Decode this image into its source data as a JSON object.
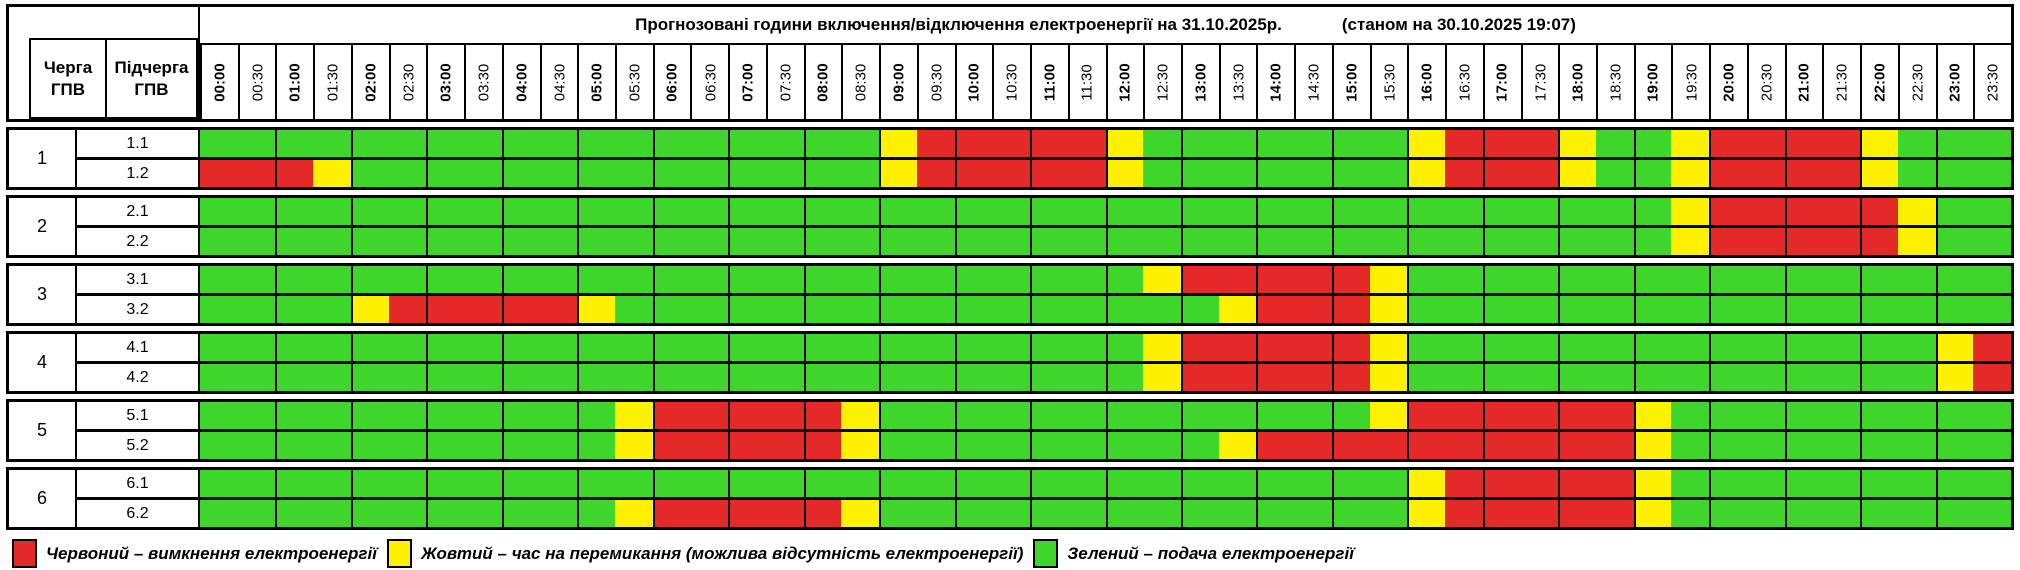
{
  "header": {
    "queue_col": [
      "Черга",
      "ГПВ"
    ],
    "subqueue_col": [
      "Підчерга",
      "ГПВ"
    ],
    "title": "Прогнозовані години включення/відключення електроенергії на 31.10.2025р.",
    "status": "(станом на 30.10.2025 19:07)"
  },
  "colors": {
    "green": "#3fd62c",
    "yellow": "#fff200",
    "red": "#e32a28"
  },
  "chart_data": {
    "type": "heatmap",
    "title": "Прогнозовані години включення/відключення електроенергії на 31.10.2025р.",
    "x": [
      "00:00",
      "00:30",
      "01:00",
      "01:30",
      "02:00",
      "02:30",
      "03:00",
      "03:30",
      "04:00",
      "04:30",
      "05:00",
      "05:30",
      "06:00",
      "06:30",
      "07:00",
      "07:30",
      "08:00",
      "08:30",
      "09:00",
      "09:30",
      "10:00",
      "10:30",
      "11:00",
      "11:30",
      "12:00",
      "12:30",
      "13:00",
      "13:30",
      "14:00",
      "14:30",
      "15:00",
      "15:30",
      "16:00",
      "16:30",
      "17:00",
      "17:30",
      "18:00",
      "18:30",
      "19:00",
      "19:30",
      "20:00",
      "20:30",
      "21:00",
      "21:30",
      "22:00",
      "22:30",
      "23:00",
      "23:30"
    ],
    "cell_states": {
      "G": "зелений – подача електроенергії",
      "Y": "жовтий – час на перемикання",
      "R": "червоний – вимкнення електроенергії"
    },
    "groups": [
      {
        "queue": "1",
        "rows": [
          {
            "label": "1.1",
            "cells": "GGGGGGGGGGGGGGGGGGYRRRRRYGGGGGGGYRRRYGGYRRRRYGGG"
          },
          {
            "label": "1.2",
            "cells": "RRRYGGGGGGGGGGGGGGYRRRRRYGGGGGGGYRRRYGGYRRRRYGGG"
          }
        ]
      },
      {
        "queue": "2",
        "rows": [
          {
            "label": "2.1",
            "cells": "GGGGGGGGGGGGGGGGGGGGGGGGGGGGGGGGGGGGGGGYRRRRRYGG"
          },
          {
            "label": "2.2",
            "cells": "GGGGGGGGGGGGGGGGGGGGGGGGGGGGGGGGGGGGGGGYRRRRRYGG"
          }
        ]
      },
      {
        "queue": "3",
        "rows": [
          {
            "label": "3.1",
            "cells": "GGGGGGGGGGGGGGGGGGGGGGGGGYRRRRRYGGGGGGGGGGGGGGGG"
          },
          {
            "label": "3.2",
            "cells": "GGGGYRRRRRYGGGGGGGGGGGGGGGGYRRRYGGGGGGGGGGGGGGGG"
          }
        ]
      },
      {
        "queue": "4",
        "rows": [
          {
            "label": "4.1",
            "cells": "GGGGGGGGGGGGGGGGGGGGGGGGGYRRRRRYGGGGGGGGGGGGGGYR"
          },
          {
            "label": "4.2",
            "cells": "GGGGGGGGGGGGGGGGGGGGGGGGGYRRRRRYGGGGGGGGGGGGGGYR"
          }
        ]
      },
      {
        "queue": "5",
        "rows": [
          {
            "label": "5.1",
            "cells": "GGGGGGGGGGGYRRRRRYGGGGGGGGGGGGGYRRRRRRYGGGGGGGGG"
          },
          {
            "label": "5.2",
            "cells": "GGGGGGGGGGGYRRRRRYGGGGGGGGGYRRRRRRRRRRYGGGGGGGGG"
          }
        ]
      },
      {
        "queue": "6",
        "rows": [
          {
            "label": "6.1",
            "cells": "GGGGGGGGGGGGGGGGGGGGGGGGGGGGGGGGYRRRRRYGGGGGGGGG"
          },
          {
            "label": "6.2",
            "cells": "GGGGGGGGGGGYRRRRRYGGGGGGGGGGGGGGYRRRRRYGGGGGGGGG"
          }
        ]
      }
    ]
  },
  "legend": [
    {
      "key": "red",
      "label": "Червоний – вимкнення електроенергії"
    },
    {
      "key": "yellow",
      "label": "Жовтий – час на перемикання (можлива відсутність електроенергії)"
    },
    {
      "key": "green",
      "label": "Зелений – подача електроенергії"
    }
  ]
}
